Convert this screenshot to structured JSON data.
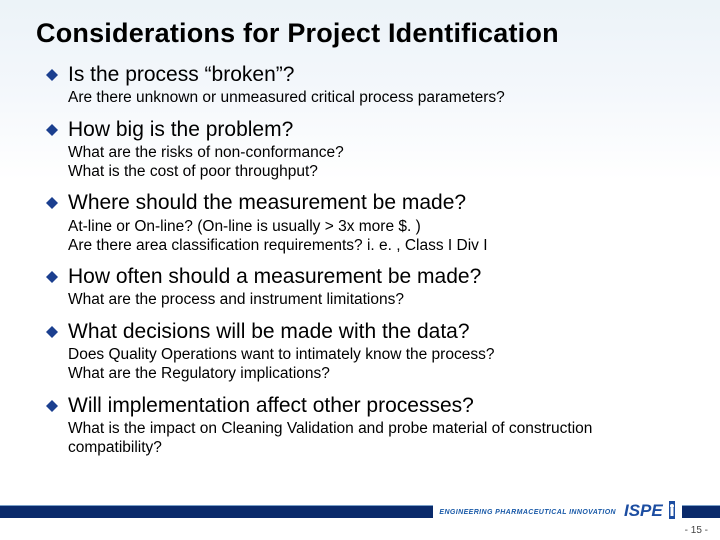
{
  "title": "Considerations for Project Identification",
  "bullet_fill": "#1b3f8f",
  "footer_bar_color": "#0a2a6b",
  "logo_text": "ISPE",
  "logo_color": "#1c4da1",
  "tagline": "ENGINEERING PHARMACEUTICAL INNOVATION",
  "page_number": "- 15 -",
  "items": [
    {
      "question": "Is the process “broken”?",
      "subs": [
        "Are there unknown or unmeasured critical process parameters?"
      ]
    },
    {
      "question": "How big is the problem?",
      "subs": [
        "What are the risks of non-conformance?",
        "What is the cost of poor throughput?"
      ]
    },
    {
      "question": "Where should the measurement be made?",
      "subs": [
        "At-line or On-line?   (On-line is usually > 3x more $. )",
        "Are there area classification requirements?  i. e. ,  Class I  Div I"
      ]
    },
    {
      "question": "How often should a measurement be made?",
      "subs": [
        "What are the process and instrument limitations?"
      ]
    },
    {
      "question": "What decisions will be made with the data?",
      "subs": [
        "Does Quality Operations want to intimately know the process?",
        "What are the Regulatory implications?"
      ]
    },
    {
      "question": "Will implementation affect other processes?",
      "subs": [
        "What is the impact on Cleaning Validation and probe material of construction compatibility?"
      ]
    }
  ]
}
